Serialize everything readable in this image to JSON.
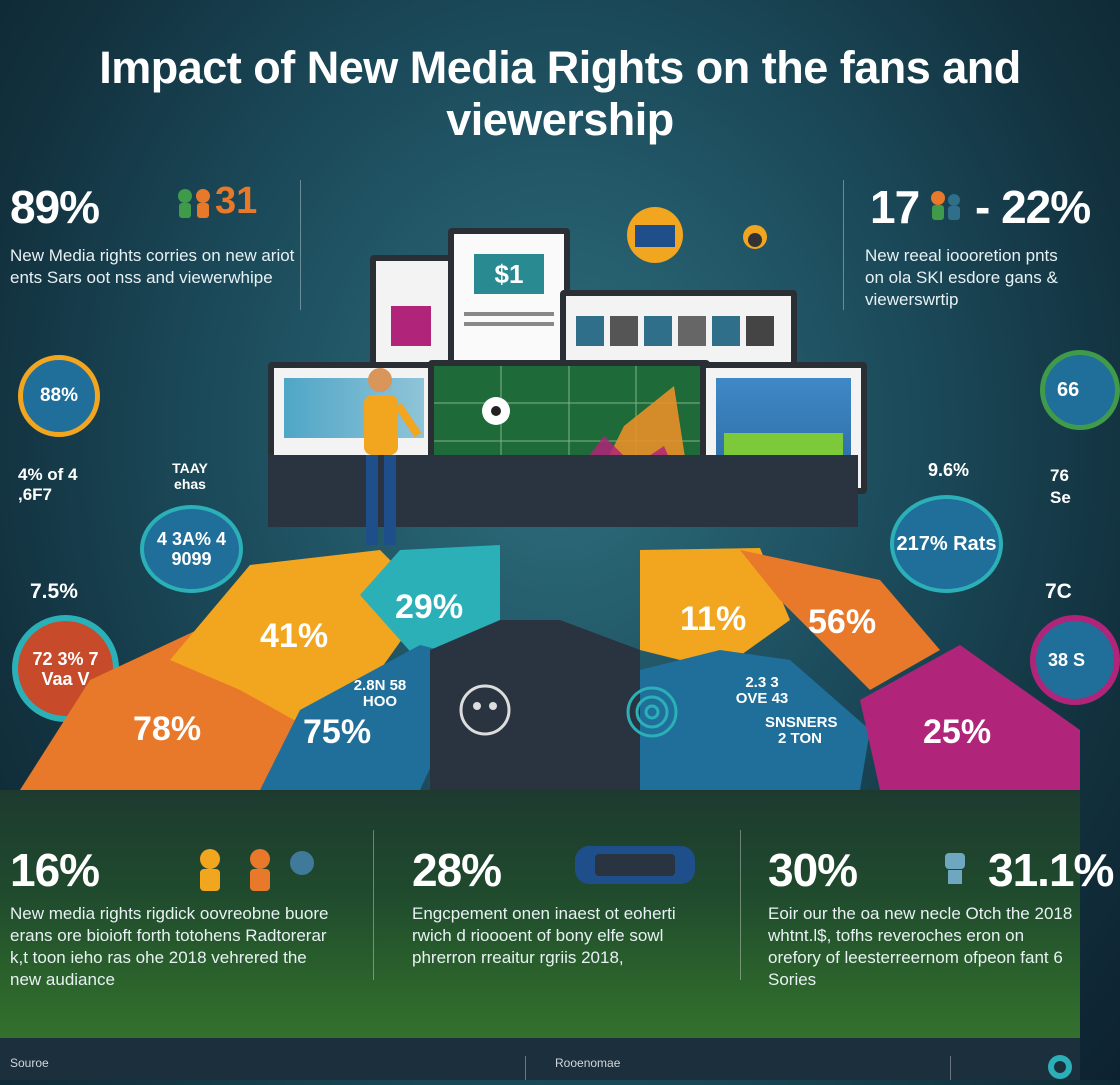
{
  "title": "Impact of New Media Rights on the fans and viewership",
  "top_left": {
    "stat": "89%",
    "stat2": "31",
    "text": "New Media rights corries on new ariot ents Sars oot nss and viewerwhipe"
  },
  "top_right": {
    "stat": "17",
    "stat2": "- 22%",
    "text": "New reeal ioooretion pnts on ola SKI esdore gans & viewerswrtip"
  },
  "screen_label": "$1",
  "left_rings": [
    {
      "label": "88%"
    },
    {
      "label": "4 3A% 4 9099"
    },
    {
      "label": "72 3% 7 Vaa V"
    }
  ],
  "left_side_texts": [
    "4% of 4 ,6F7",
    "TAAY ehas",
    "7.5%"
  ],
  "right_rings": [
    {
      "label": "66"
    },
    {
      "label": "217% Rats"
    },
    {
      "label": "38 S"
    }
  ],
  "right_side_texts": [
    "9.6%",
    "76 Se",
    "7C"
  ],
  "segments": [
    "78%",
    "41%",
    "29%",
    "75%",
    "11%",
    "56%",
    "25%"
  ],
  "segment_notes": [
    "2.8N 58 HOO",
    "2.3 3 OVE 43",
    "SNSNERS 2 TON"
  ],
  "bottom": [
    {
      "stat": "16%",
      "text": "New media rights rigdick oovreobne buore erans ore bioioft forth totohens Radtorerar k,t toon ieho ras ohe 2018 vehrered the new audiance"
    },
    {
      "stat": "28%",
      "text": "Engcpement onen inaest ot eoherti rwich d rioooent of bony elfe sowl phrerron rreaitur rgriis 2018,"
    },
    {
      "stat": "30%",
      "stat2": "31.1%",
      "text": "Eoir our the oa new necle Otch the 2018 whtnt.l$, tofhs reveroches eron on orefory of leesterreernom ofpeon fant 6 Sories"
    }
  ],
  "footer": {
    "left": "Souroe",
    "middle": "Rooenomae"
  },
  "colors": {
    "orange": "#e8782a",
    "yellow": "#f2a51f",
    "teal": "#2bb0b8",
    "blue": "#1f6f9a",
    "magenta": "#b0257a"
  }
}
